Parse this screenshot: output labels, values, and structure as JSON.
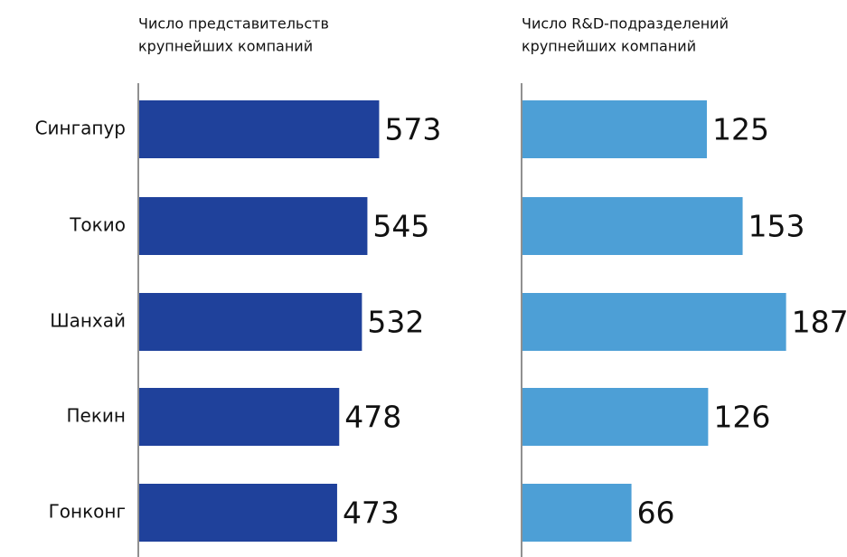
{
  "chart_data": [
    {
      "type": "hbar",
      "title": [
        "Число представительств",
        "крупнейших компаний"
      ],
      "categories": [
        "Сингапур",
        "Токио",
        "Шанхай",
        "Пекин",
        "Гонконг"
      ],
      "values": [
        573,
        545,
        532,
        478,
        473
      ],
      "color": "#1f419b",
      "xlim": [
        0,
        600
      ]
    },
    {
      "type": "hbar",
      "title": [
        "Число R&D-подразделений",
        "крупнейших компаний"
      ],
      "values": [
        125,
        153,
        187,
        126,
        66
      ],
      "color": "#4d9fd6",
      "xlim": [
        -20,
        200
      ]
    }
  ]
}
